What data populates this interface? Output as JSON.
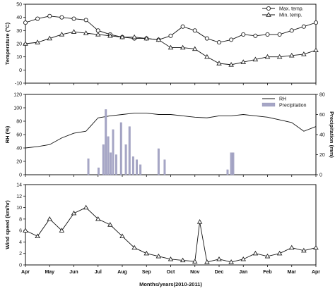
{
  "figure": {
    "xlabel": "Months/years(2010-2011)",
    "months": [
      "Apr",
      "May",
      "Jun",
      "Jul",
      "Aug",
      "Sep",
      "Oct",
      "Nov",
      "Dec",
      "Jan",
      "Feb",
      "Mar",
      "Apr"
    ]
  },
  "chart_data": [
    {
      "type": "line",
      "ylabel": "Temperature (°C)",
      "ylim": [
        -10,
        50
      ],
      "yticks": [
        -10,
        0,
        10,
        20,
        30,
        40,
        50
      ],
      "xlim": [
        0,
        12
      ],
      "legend": "top-right",
      "series": [
        {
          "name": "Max. temp.",
          "marker": "circle",
          "x": [
            0,
            0.5,
            1,
            1.5,
            2,
            2.5,
            3,
            3.5,
            4,
            4.5,
            5,
            5.5,
            6,
            6.5,
            7,
            7.5,
            8,
            8.5,
            9,
            9.5,
            10,
            10.5,
            11,
            11.5,
            12
          ],
          "values": [
            36,
            39,
            41,
            40,
            39,
            38,
            30,
            27,
            25,
            24,
            24,
            23,
            26,
            33,
            30,
            24,
            21,
            23,
            27,
            26,
            27,
            27,
            30,
            33,
            36
          ]
        },
        {
          "name": "Min. temp.",
          "marker": "triangle",
          "x": [
            0,
            0.5,
            1,
            1.5,
            2,
            2.5,
            3,
            3.5,
            4,
            4.5,
            5,
            5.5,
            6,
            6.5,
            7,
            7.5,
            8,
            8.5,
            9,
            9.5,
            10,
            10.5,
            11,
            11.5,
            12
          ],
          "values": [
            20,
            21,
            24,
            27,
            29,
            28,
            27,
            26,
            25,
            25,
            24,
            23,
            17,
            17,
            16,
            10,
            5,
            4,
            6,
            8,
            10,
            10,
            11,
            12,
            15
          ]
        }
      ]
    },
    {
      "type": "line",
      "ylabel": "RH (%)",
      "ylim": [
        0,
        120
      ],
      "yticks": [
        0,
        20,
        40,
        60,
        80,
        100,
        120
      ],
      "y2label": "Precipitation (mm)",
      "y2lim": [
        0,
        80
      ],
      "y2ticks": [
        0,
        20,
        40,
        60,
        80
      ],
      "xlim": [
        0,
        12
      ],
      "legend": "top-right",
      "series": [
        {
          "name": "RH",
          "kind": "line",
          "x": [
            0,
            0.5,
            1,
            1.5,
            2,
            2.5,
            3,
            3.5,
            4,
            4.5,
            5,
            5.5,
            6,
            6.5,
            7,
            7.5,
            8,
            8.5,
            9,
            9.5,
            10,
            10.5,
            11,
            11.5,
            12
          ],
          "values": [
            40,
            42,
            45,
            55,
            62,
            65,
            85,
            88,
            90,
            92,
            92,
            90,
            90,
            88,
            86,
            85,
            88,
            88,
            90,
            88,
            86,
            82,
            78,
            65,
            72
          ]
        },
        {
          "name": "Precipitation",
          "kind": "bar",
          "axis": "y2",
          "x": [
            2.6,
            3.02,
            3.22,
            3.32,
            3.42,
            3.52,
            3.62,
            3.75,
            3.95,
            4.15,
            4.3,
            4.45,
            4.6,
            4.75,
            5.5,
            5.75,
            8.35,
            8.5,
            8.58
          ],
          "values": [
            16,
            7,
            30,
            65,
            38,
            22,
            45,
            20,
            52,
            30,
            48,
            18,
            15,
            10,
            26,
            15,
            5,
            22,
            22
          ]
        }
      ]
    },
    {
      "type": "line",
      "ylabel": "Wind speed (km/hr)",
      "ylim": [
        0,
        14
      ],
      "yticks": [
        0,
        2,
        4,
        6,
        8,
        10,
        12,
        14
      ],
      "xlim": [
        0,
        12
      ],
      "series": [
        {
          "name": "Wind speed",
          "marker": "triangle",
          "x": [
            0,
            0.5,
            1,
            1.5,
            2,
            2.5,
            3,
            3.5,
            4,
            4.5,
            5,
            5.5,
            6,
            6.5,
            7,
            7.2,
            7.5,
            8,
            8.5,
            9,
            9.5,
            10,
            10.5,
            11,
            11.5,
            12
          ],
          "values": [
            6,
            5,
            8,
            6,
            9,
            10,
            8,
            7,
            5,
            3,
            2,
            1.5,
            1,
            0.8,
            0.6,
            7.5,
            0.5,
            1,
            0.5,
            1,
            2,
            1.5,
            2,
            3,
            2.5,
            3
          ]
        }
      ]
    }
  ]
}
